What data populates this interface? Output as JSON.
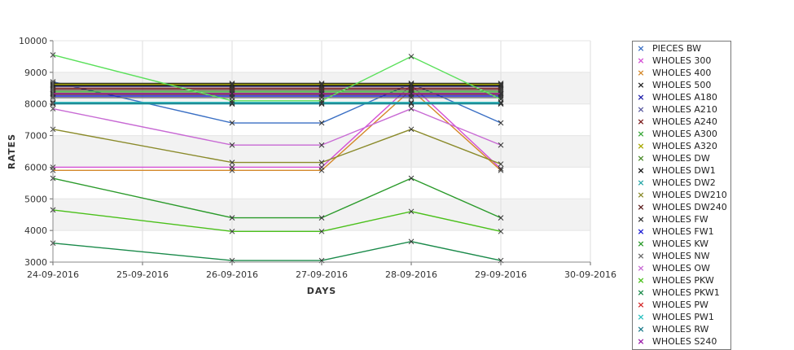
{
  "chart_data": {
    "type": "line",
    "xlabel": "DAYS",
    "ylabel": "RATES",
    "x_ticks": [
      "24-09-2016",
      "25-09-2016",
      "26-09-2016",
      "27-09-2016",
      "28-09-2016",
      "29-09-2016",
      "30-09-2016"
    ],
    "x": [
      "24-09-2016",
      "26-09-2016",
      "27-09-2016",
      "28-09-2016",
      "29-09-2016"
    ],
    "ylim": [
      3000,
      10000
    ],
    "y_ticks": [
      3000,
      4000,
      5000,
      6000,
      7000,
      8000,
      9000,
      10000
    ],
    "grid": true,
    "legend_position": "right",
    "series": [
      {
        "name": "PIECES BW",
        "color": "#3a6fc4",
        "values": [
          8700,
          7400,
          7400,
          8650,
          7400
        ]
      },
      {
        "name": "WHOLES 300",
        "color": "#d44fd4",
        "values": [
          6000,
          6000,
          6000,
          8600,
          5950
        ]
      },
      {
        "name": "WHOLES 400",
        "color": "#d4882a",
        "values": [
          5900,
          5900,
          5900,
          8450,
          5900
        ]
      },
      {
        "name": "WHOLES 500",
        "color": "#222222",
        "values": [
          8650,
          8650,
          8650,
          8650,
          8650
        ]
      },
      {
        "name": "WHOLES A180",
        "color": "#1a1aa8",
        "values": [
          8600,
          8600,
          8600,
          8600,
          8600
        ]
      },
      {
        "name": "WHOLES A210",
        "color": "#5a5aa0",
        "values": [
          8550,
          8550,
          8550,
          8550,
          8550
        ]
      },
      {
        "name": "WHOLES A240",
        "color": "#7a1a1a",
        "values": [
          8500,
          8500,
          8500,
          8500,
          8500
        ]
      },
      {
        "name": "WHOLES A300",
        "color": "#3aa83a",
        "values": [
          8400,
          8400,
          8400,
          8400,
          8400
        ]
      },
      {
        "name": "WHOLES A320",
        "color": "#a8a800",
        "values": [
          8620,
          8620,
          8620,
          8620,
          8620
        ]
      },
      {
        "name": "WHOLES DW",
        "color": "#4a8a2a",
        "values": [
          8350,
          8350,
          8350,
          8350,
          8350
        ]
      },
      {
        "name": "WHOLES DW1",
        "color": "#111111",
        "values": [
          8580,
          8580,
          8580,
          8580,
          8580
        ]
      },
      {
        "name": "WHOLES DW2",
        "color": "#2aa8a8",
        "values": [
          8000,
          8000,
          8000,
          8000,
          8000
        ]
      },
      {
        "name": "WHOLES DW210",
        "color": "#8a8a2a",
        "values": [
          7200,
          6150,
          6150,
          7200,
          6100
        ]
      },
      {
        "name": "WHOLES DW240",
        "color": "#5a1a1a",
        "values": [
          8450,
          8450,
          8450,
          8450,
          8450
        ]
      },
      {
        "name": "WHOLES FW",
        "color": "#333333",
        "values": [
          8300,
          8300,
          8300,
          8300,
          8300
        ]
      },
      {
        "name": "WHOLES FW1",
        "color": "#1a1ad4",
        "values": [
          8250,
          8250,
          8250,
          8250,
          8250
        ]
      },
      {
        "name": "WHOLES KW",
        "color": "#2a9a2a",
        "values": [
          5650,
          4400,
          4400,
          5650,
          4400
        ]
      },
      {
        "name": "WHOLES NW",
        "color": "#6a6a6a",
        "values": [
          8200,
          8200,
          8200,
          8200,
          8200
        ]
      },
      {
        "name": "WHOLES OW",
        "color": "#c86ad4",
        "values": [
          7850,
          6700,
          6700,
          7850,
          6700
        ]
      },
      {
        "name": "WHOLES PKW",
        "color": "#4ac01a",
        "values": [
          4650,
          3970,
          3970,
          4600,
          3970
        ]
      },
      {
        "name": "WHOLES PKW1",
        "color": "#1a8a4a",
        "values": [
          3600,
          3050,
          3050,
          3650,
          3050
        ]
      },
      {
        "name": "WHOLES PW",
        "color": "#d42a2a",
        "values": [
          8320,
          8320,
          8320,
          8320,
          8320
        ]
      },
      {
        "name": "WHOLES PW1",
        "color": "#2ac0c0",
        "values": [
          8050,
          8050,
          8050,
          8050,
          8050
        ]
      },
      {
        "name": "WHOLES RW",
        "color": "#1a7a8a",
        "values": [
          8020,
          8020,
          8020,
          8020,
          8020
        ]
      },
      {
        "name": "WHOLES S240",
        "color": "#9a1aa8",
        "values": [
          8330,
          8330,
          8330,
          8330,
          8330
        ]
      },
      {
        "name": "",
        "color": "#5ae05a",
        "values": [
          9550,
          8100,
          8100,
          9500,
          8150
        ]
      }
    ]
  }
}
